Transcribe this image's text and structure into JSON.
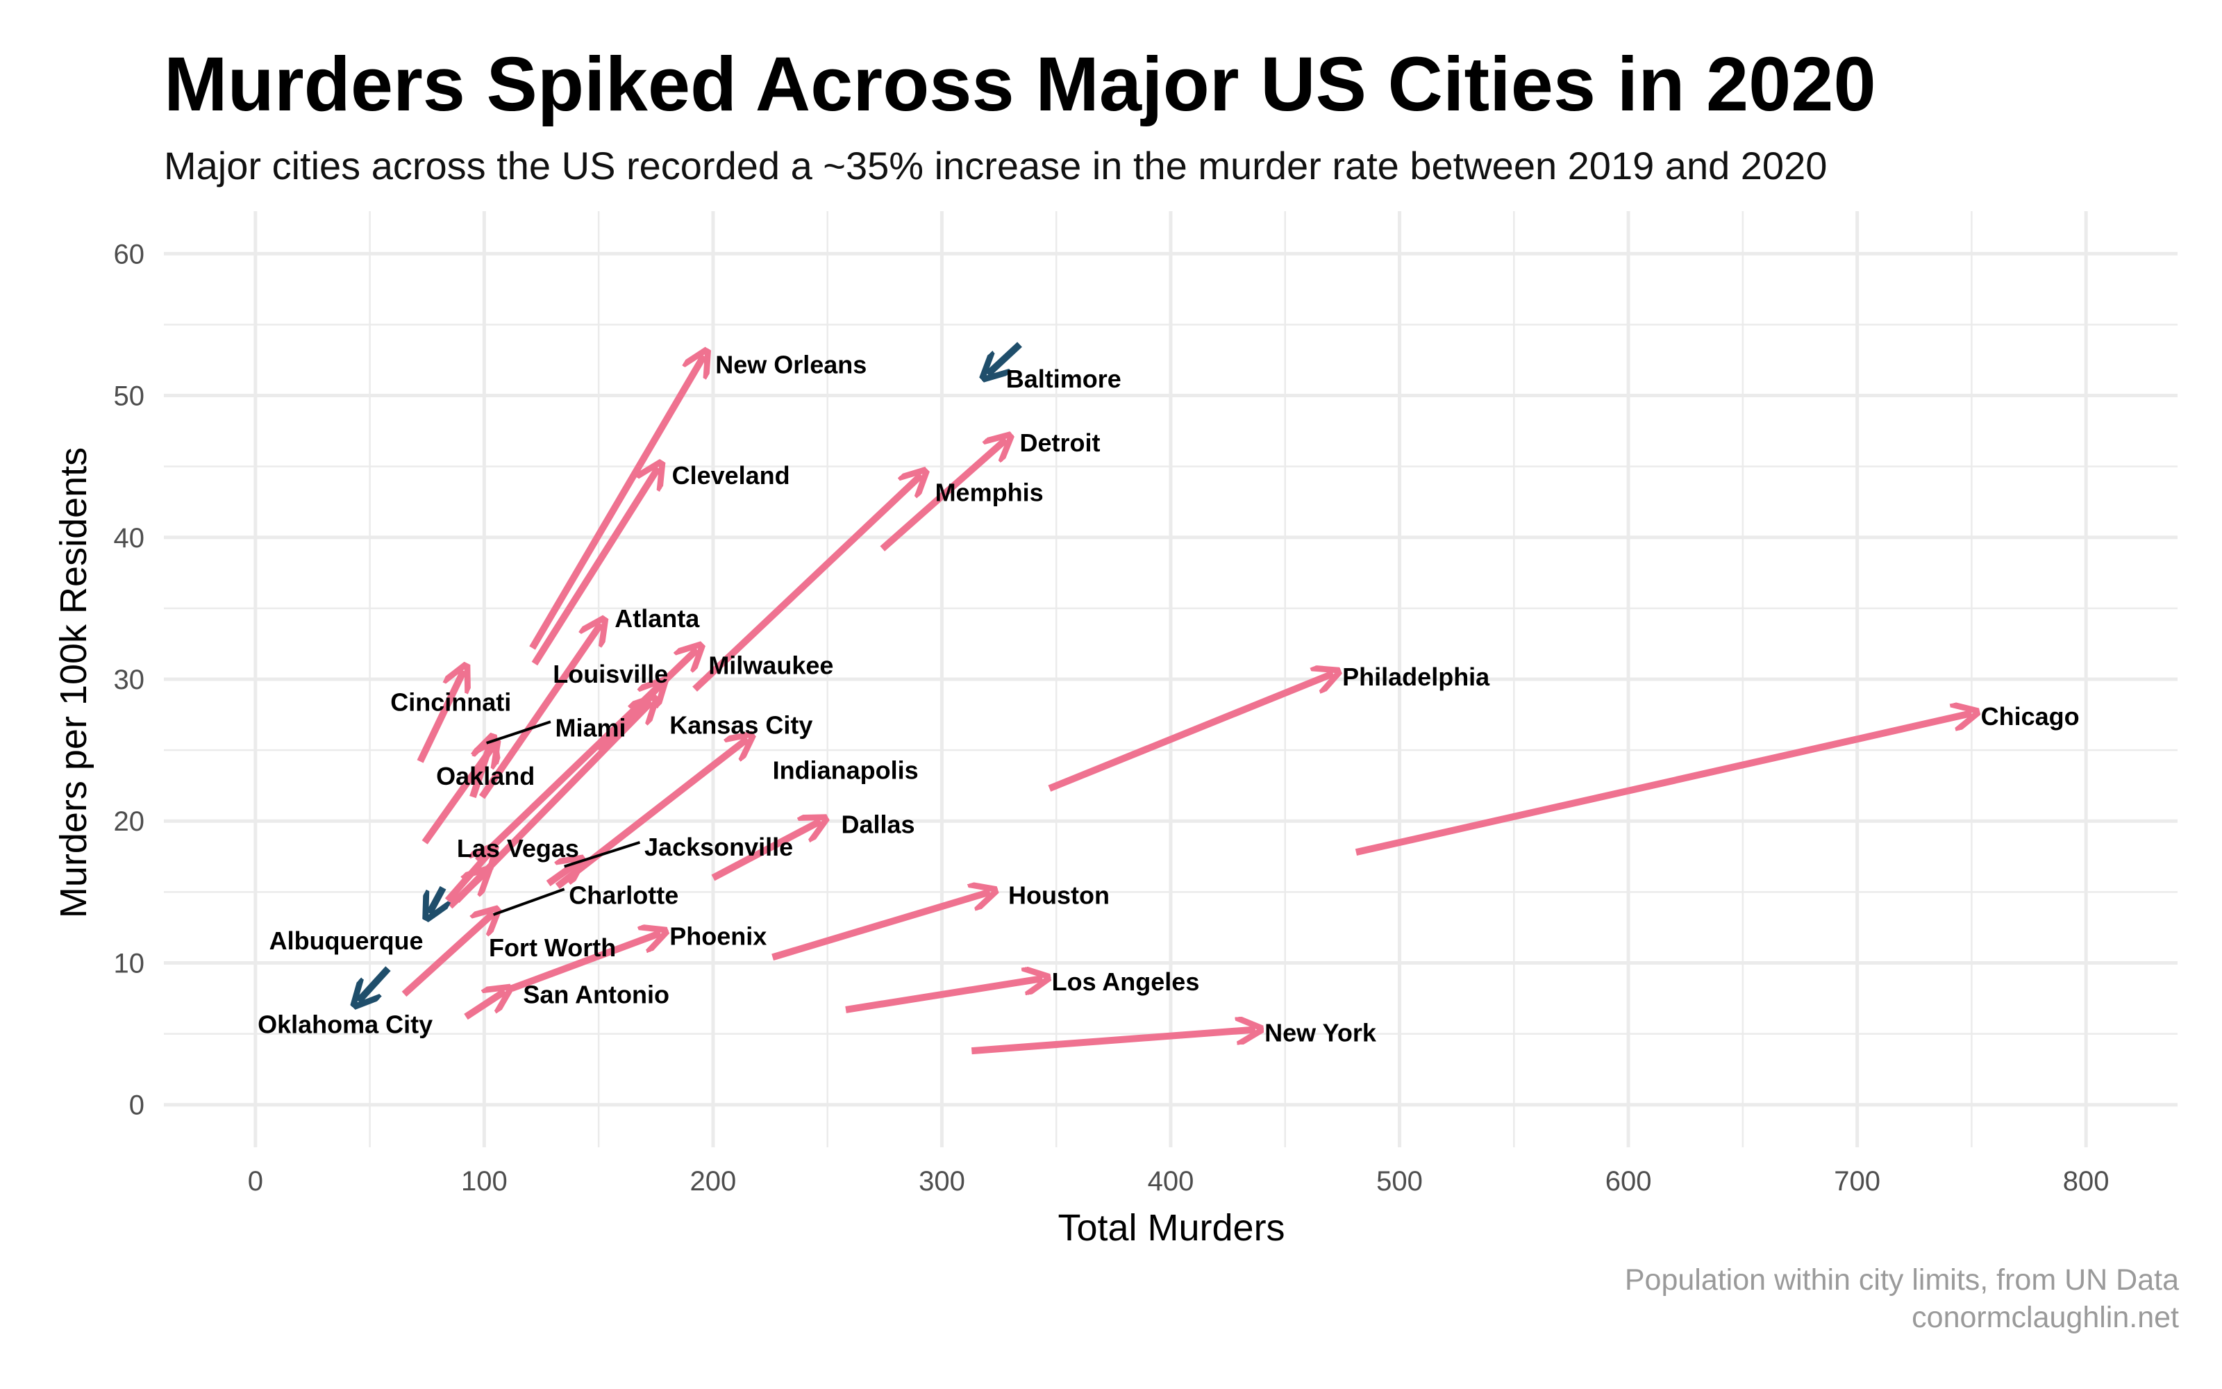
{
  "title": "Murders Spiked Across Major US Cities in 2020",
  "subtitle": "Major cities across the US recorded a ~35% increase in the murder rate between 2019 and 2020",
  "caption": [
    "Population within city limits, from UN Data",
    "conormclaughlin.net"
  ],
  "colors": {
    "increase": "#ef7290",
    "decrease": "#1f4e6b",
    "grid": "#ebebeb"
  },
  "chart_data": {
    "type": "scatter",
    "subtype": "arrow-segments",
    "title": "Murders Spiked Across Major US Cities in 2020",
    "subtitle": "Major cities across the US recorded a ~35% increase in the murder rate between 2019 and 2020",
    "xlabel": "Total Murders",
    "ylabel": "Murders per 100k Residents",
    "xlim": [
      -40,
      840
    ],
    "ylim": [
      -3,
      63
    ],
    "xticks": [
      0,
      100,
      200,
      300,
      400,
      500,
      600,
      700,
      800
    ],
    "yticks": [
      0,
      10,
      20,
      30,
      40,
      50,
      60
    ],
    "grid": true,
    "legend": "none",
    "segments": [
      {
        "city": "Chicago",
        "x_2019": 481,
        "y_2019": 17.8,
        "x_2020": 750,
        "y_2020": 27.6
      },
      {
        "city": "Philadelphia",
        "x_2019": 347,
        "y_2019": 22.3,
        "x_2020": 471,
        "y_2020": 30.4
      },
      {
        "city": "New York",
        "x_2019": 313,
        "y_2019": 3.8,
        "x_2020": 437,
        "y_2020": 5.3
      },
      {
        "city": "Los Angeles",
        "x_2019": 258,
        "y_2019": 6.7,
        "x_2020": 344,
        "y_2020": 8.9
      },
      {
        "city": "Houston",
        "x_2019": 226,
        "y_2019": 10.4,
        "x_2020": 321,
        "y_2020": 15.0
      },
      {
        "city": "Detroit",
        "x_2019": 274,
        "y_2019": 39.2,
        "x_2020": 328,
        "y_2020": 46.9
      },
      {
        "city": "Memphis",
        "x_2019": 192,
        "y_2019": 29.3,
        "x_2020": 291,
        "y_2020": 44.4
      },
      {
        "city": "Baltimore",
        "x_2019": 334,
        "y_2019": 53.6,
        "x_2020": 320,
        "y_2020": 51.5
      },
      {
        "city": "New Orleans",
        "x_2019": 121,
        "y_2019": 32.2,
        "x_2020": 196,
        "y_2020": 52.8
      },
      {
        "city": "Cleveland",
        "x_2019": 122,
        "y_2019": 31.1,
        "x_2020": 176,
        "y_2020": 44.9
      },
      {
        "city": "Atlanta",
        "x_2019": 99,
        "y_2019": 21.7,
        "x_2020": 151,
        "y_2020": 33.9
      },
      {
        "city": "Milwaukee",
        "x_2019": 97,
        "y_2019": 17.2,
        "x_2020": 193,
        "y_2020": 32.1
      },
      {
        "city": "Louisville",
        "x_2019": 88,
        "y_2019": 14.4,
        "x_2020": 173,
        "y_2020": 28.4
      },
      {
        "city": "Kansas City",
        "x_2019": 150,
        "y_2019": 25.0,
        "x_2020": 177,
        "y_2020": 29.6
      },
      {
        "city": "Indianapolis",
        "x_2019": 132,
        "y_2019": 15.4,
        "x_2020": 215,
        "y_2020": 25.8
      },
      {
        "city": "Dallas",
        "x_2019": 200,
        "y_2019": 16.0,
        "x_2020": 247,
        "y_2020": 20.0
      },
      {
        "city": "Cincinnati",
        "x_2019": 72,
        "y_2019": 24.2,
        "x_2020": 91,
        "y_2020": 30.6
      },
      {
        "city": "Miami",
        "x_2019": 95,
        "y_2019": 21.7,
        "x_2020": 103,
        "y_2020": 25.6
      },
      {
        "city": "Oakland",
        "x_2019": 74,
        "y_2019": 18.5,
        "x_2020": 104,
        "y_2020": 25.3
      },
      {
        "city": "Las Vegas",
        "x_2019": 85,
        "y_2019": 14.0,
        "x_2020": 100,
        "y_2020": 16.3
      },
      {
        "city": "Jacksonville",
        "x_2019": 128,
        "y_2019": 15.6,
        "x_2020": 141,
        "y_2020": 17.1
      },
      {
        "city": "Charlotte",
        "x_2019": 84,
        "y_2019": 14.4,
        "x_2020": 103,
        "y_2020": 17.9
      },
      {
        "city": "Albuquerque",
        "x_2019": 82,
        "y_2019": 15.3,
        "x_2020": 76,
        "y_2020": 13.5
      },
      {
        "city": "Fort Worth",
        "x_2019": 65,
        "y_2019": 7.8,
        "x_2020": 104,
        "y_2020": 13.5
      },
      {
        "city": "Phoenix",
        "x_2019": 112,
        "y_2019": 8.2,
        "x_2020": 177,
        "y_2020": 12.1
      },
      {
        "city": "San Antonio",
        "x_2019": 92,
        "y_2019": 6.2,
        "x_2020": 109,
        "y_2020": 8.0
      },
      {
        "city": "Oklahoma City",
        "x_2019": 58,
        "y_2019": 9.6,
        "x_2020": 45,
        "y_2020": 7.3
      }
    ],
    "labels": [
      {
        "city": "Chicago",
        "x": 754,
        "y": 27.4,
        "anchor": "start"
      },
      {
        "city": "Philadelphia",
        "x": 475,
        "y": 30.2,
        "anchor": "start"
      },
      {
        "city": "New York",
        "x": 441,
        "y": 5.1,
        "anchor": "start"
      },
      {
        "city": "Los Angeles",
        "x": 348,
        "y": 8.7,
        "anchor": "start"
      },
      {
        "city": "Houston",
        "x": 329,
        "y": 14.8,
        "anchor": "start"
      },
      {
        "city": "Detroit",
        "x": 334,
        "y": 46.7,
        "anchor": "start"
      },
      {
        "city": "Memphis",
        "x": 297,
        "y": 43.2,
        "anchor": "start"
      },
      {
        "city": "Baltimore",
        "x": 328,
        "y": 51.2,
        "anchor": "start"
      },
      {
        "city": "New Orleans",
        "x": 201,
        "y": 52.2,
        "anchor": "start"
      },
      {
        "city": "Cleveland",
        "x": 182,
        "y": 44.4,
        "anchor": "start"
      },
      {
        "city": "Atlanta",
        "x": 157,
        "y": 34.3,
        "anchor": "start"
      },
      {
        "city": "Milwaukee",
        "x": 198,
        "y": 31.0,
        "anchor": "start"
      },
      {
        "city": "Louisville",
        "x": 130,
        "y": 30.4,
        "anchor": "start"
      },
      {
        "city": "Kansas City",
        "x": 181,
        "y": 26.8,
        "anchor": "start"
      },
      {
        "city": "Indianapolis",
        "x": 226,
        "y": 23.6,
        "anchor": "start"
      },
      {
        "city": "Dallas",
        "x": 256,
        "y": 19.8,
        "anchor": "start"
      },
      {
        "city": "Cincinnati",
        "x": 59,
        "y": 28.4,
        "anchor": "start"
      },
      {
        "city": "Miami",
        "x": 131,
        "y": 26.6,
        "anchor": "start"
      },
      {
        "city": "Oakland",
        "x": 79,
        "y": 23.2,
        "anchor": "start"
      },
      {
        "city": "Las Vegas",
        "x": 88,
        "y": 18.1,
        "anchor": "start"
      },
      {
        "city": "Jacksonville",
        "x": 170,
        "y": 18.2,
        "anchor": "start"
      },
      {
        "city": "Charlotte",
        "x": 137,
        "y": 14.8,
        "anchor": "start"
      },
      {
        "city": "Albuquerque",
        "x": 6,
        "y": 11.6,
        "anchor": "start"
      },
      {
        "city": "Fort Worth",
        "x": 102,
        "y": 11.1,
        "anchor": "start"
      },
      {
        "city": "Phoenix",
        "x": 181,
        "y": 11.9,
        "anchor": "start"
      },
      {
        "city": "San Antonio",
        "x": 117,
        "y": 7.8,
        "anchor": "start"
      },
      {
        "city": "Oklahoma City",
        "x": 1,
        "y": 5.7,
        "anchor": "start"
      }
    ],
    "leader_lines": [
      {
        "city": "Miami",
        "x1": 129,
        "y1": 27.0,
        "x2": 101,
        "y2": 25.5
      },
      {
        "city": "Jacksonville",
        "x1": 168,
        "y1": 18.5,
        "x2": 135,
        "y2": 16.8
      },
      {
        "city": "Charlotte",
        "x1": 135,
        "y1": 15.2,
        "x2": 104,
        "y2": 13.4
      }
    ]
  }
}
